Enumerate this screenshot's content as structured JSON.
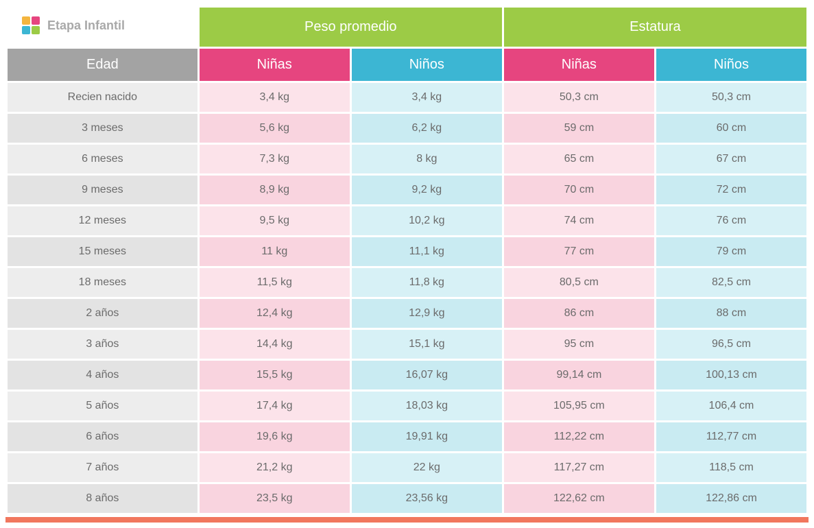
{
  "brand": "Etapa Infantil",
  "headers": {
    "group_weight": "Peso promedio",
    "group_height": "Estatura",
    "age": "Edad",
    "girls": "Niñas",
    "boys": "Niños"
  },
  "colors": {
    "group_green": "#9ccb46",
    "age_gray": "#a3a3a3",
    "girls_pink": "#e6457f",
    "boys_blue": "#3cb6d3",
    "cell_age_a": "#ededed",
    "cell_age_b": "#e3e3e3",
    "cell_pink_a": "#fce3ea",
    "cell_pink_b": "#f9d4df",
    "cell_blue_a": "#d7f1f6",
    "cell_blue_b": "#c9ebf2",
    "text_body": "#6b6b6b",
    "text_header": "#ffffff",
    "footer_orange": "#f1775e",
    "logo_gray": "#a9a9a9",
    "background": "#ffffff"
  },
  "typography": {
    "header_fontsize_pt": 15,
    "cell_fontsize_pt": 12,
    "font_family": "sans-serif"
  },
  "table": {
    "type": "table",
    "columns": [
      "Edad",
      "Peso Niñas",
      "Peso Niños",
      "Estatura Niñas",
      "Estatura Niños"
    ],
    "rows": [
      {
        "age": "Recien nacido",
        "weight_girls": "3,4 kg",
        "weight_boys": "3,4 kg",
        "height_girls": "50,3 cm",
        "height_boys": "50,3 cm"
      },
      {
        "age": "3 meses",
        "weight_girls": "5,6 kg",
        "weight_boys": "6,2 kg",
        "height_girls": "59 cm",
        "height_boys": "60 cm"
      },
      {
        "age": "6 meses",
        "weight_girls": "7,3 kg",
        "weight_boys": "8 kg",
        "height_girls": "65 cm",
        "height_boys": "67 cm"
      },
      {
        "age": "9 meses",
        "weight_girls": "8,9 kg",
        "weight_boys": "9,2 kg",
        "height_girls": "70 cm",
        "height_boys": "72 cm"
      },
      {
        "age": "12 meses",
        "weight_girls": "9,5 kg",
        "weight_boys": "10,2 kg",
        "height_girls": "74 cm",
        "height_boys": "76 cm"
      },
      {
        "age": "15 meses",
        "weight_girls": "11 kg",
        "weight_boys": "11,1 kg",
        "height_girls": "77 cm",
        "height_boys": "79 cm"
      },
      {
        "age": "18 meses",
        "weight_girls": "11,5 kg",
        "weight_boys": "11,8 kg",
        "height_girls": "80,5 cm",
        "height_boys": "82,5 cm"
      },
      {
        "age": "2 años",
        "weight_girls": "12,4 kg",
        "weight_boys": "12,9 kg",
        "height_girls": "86 cm",
        "height_boys": "88 cm"
      },
      {
        "age": "3 años",
        "weight_girls": "14,4 kg",
        "weight_boys": "15,1 kg",
        "height_girls": "95 cm",
        "height_boys": "96,5 cm"
      },
      {
        "age": "4 años",
        "weight_girls": "15,5 kg",
        "weight_boys": "16,07 kg",
        "height_girls": "99,14 cm",
        "height_boys": "100,13 cm"
      },
      {
        "age": "5 años",
        "weight_girls": "17,4 kg",
        "weight_boys": "18,03 kg",
        "height_girls": "105,95 cm",
        "height_boys": "106,4 cm"
      },
      {
        "age": "6 años",
        "weight_girls": "19,6 kg",
        "weight_boys": "19,91 kg",
        "height_girls": "112,22 cm",
        "height_boys": "112,77 cm"
      },
      {
        "age": "7 años",
        "weight_girls": "21,2 kg",
        "weight_boys": "22 kg",
        "height_girls": "117,27 cm",
        "height_boys": "118,5 cm"
      },
      {
        "age": "8 años",
        "weight_girls": "23,5 kg",
        "weight_boys": "23,56 kg",
        "height_girls": "122,62 cm",
        "height_boys": "122,86 cm"
      }
    ]
  }
}
